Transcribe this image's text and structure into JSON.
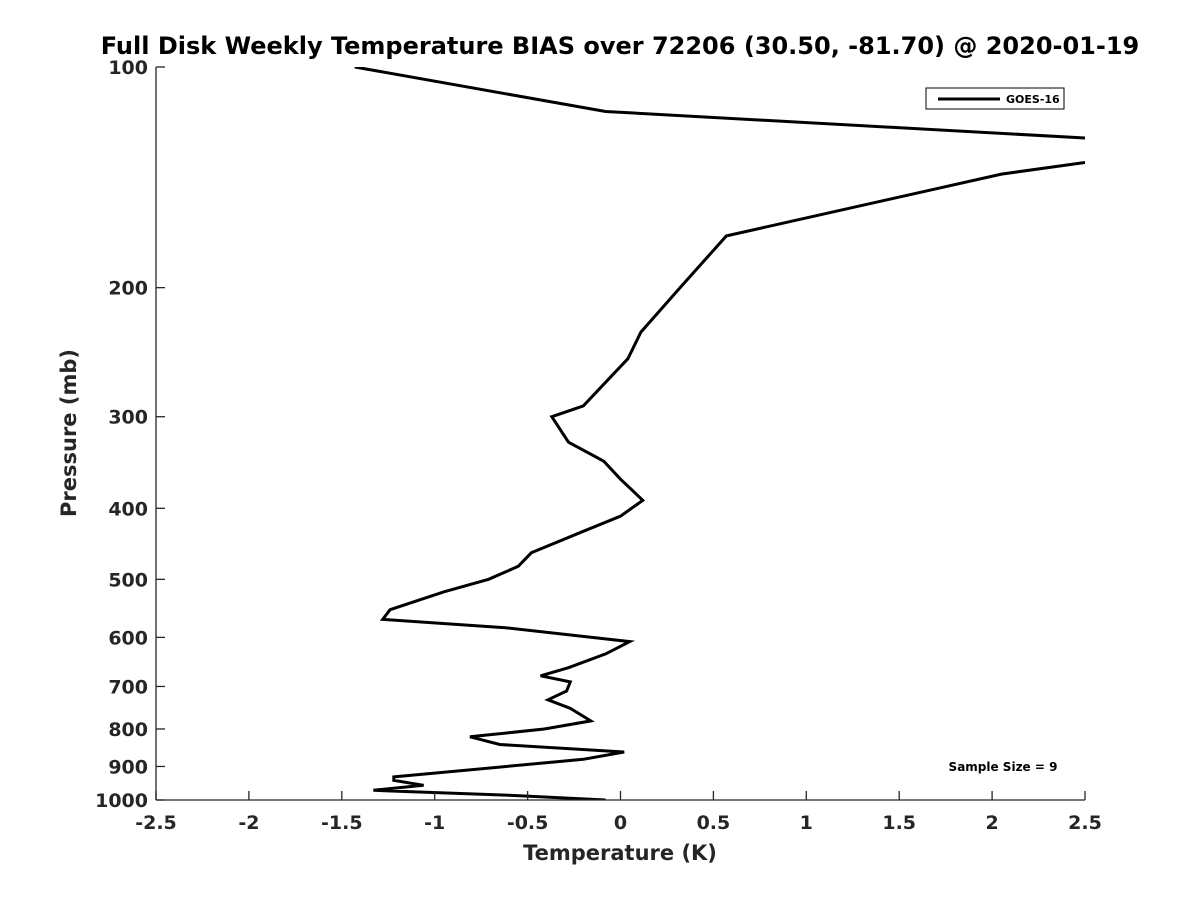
{
  "chart_data": {
    "type": "line",
    "title": "Full Disk Weekly Temperature BIAS over 72206 (30.50, -81.70) @ 2020-01-19",
    "xlabel": "Temperature (K)",
    "ylabel": "Pressure (mb)",
    "xlim": [
      -2.5,
      2.5
    ],
    "ylim": [
      100,
      1000
    ],
    "y_scale": "log",
    "y_reversed": true,
    "grid": false,
    "legend_position": "top-right",
    "x_ticks": [
      -2.5,
      -2,
      -1.5,
      -1,
      -0.5,
      0,
      0.5,
      1,
      1.5,
      2,
      2.5
    ],
    "x_tick_labels": [
      "-2.5",
      "-2",
      "-1.5",
      "-1",
      "-0.5",
      "0",
      "0.5",
      "1",
      "1.5",
      "2",
      "2.5"
    ],
    "y_ticks": [
      100,
      200,
      300,
      400,
      500,
      600,
      700,
      800,
      900,
      1000
    ],
    "y_tick_labels": [
      "100",
      "200",
      "300",
      "400",
      "500",
      "600",
      "700",
      "800",
      "900",
      "1000"
    ],
    "annotation": "Sample Size = 9",
    "series": [
      {
        "name": "GOES-16",
        "color": "#000000",
        "segments": [
          [
            {
              "x": -1.43,
              "y": 100
            },
            {
              "x": -0.08,
              "y": 115
            },
            {
              "x": 2.5,
              "y": 125
            }
          ],
          [
            {
              "x": 2.5,
              "y": 135
            },
            {
              "x": 2.05,
              "y": 140
            },
            {
              "x": 0.57,
              "y": 170
            },
            {
              "x": 0.32,
              "y": 200
            },
            {
              "x": 0.11,
              "y": 230
            },
            {
              "x": 0.04,
              "y": 250
            },
            {
              "x": -0.2,
              "y": 290
            },
            {
              "x": -0.37,
              "y": 300
            },
            {
              "x": -0.28,
              "y": 325
            },
            {
              "x": -0.09,
              "y": 345
            },
            {
              "x": 0.0,
              "y": 365
            },
            {
              "x": 0.12,
              "y": 390
            },
            {
              "x": 0.0,
              "y": 410
            },
            {
              "x": -0.2,
              "y": 430
            },
            {
              "x": -0.48,
              "y": 460
            },
            {
              "x": -0.55,
              "y": 480
            },
            {
              "x": -0.71,
              "y": 500
            },
            {
              "x": -0.95,
              "y": 520
            },
            {
              "x": -1.24,
              "y": 550
            },
            {
              "x": -1.28,
              "y": 567
            },
            {
              "x": -0.62,
              "y": 582
            },
            {
              "x": 0.05,
              "y": 608
            },
            {
              "x": -0.08,
              "y": 632
            },
            {
              "x": -0.28,
              "y": 660
            },
            {
              "x": -0.43,
              "y": 677
            },
            {
              "x": -0.27,
              "y": 690
            },
            {
              "x": -0.29,
              "y": 710
            },
            {
              "x": -0.39,
              "y": 730
            },
            {
              "x": -0.27,
              "y": 750
            },
            {
              "x": -0.16,
              "y": 780
            },
            {
              "x": -0.41,
              "y": 800
            },
            {
              "x": -0.81,
              "y": 820
            },
            {
              "x": -0.65,
              "y": 840
            },
            {
              "x": 0.02,
              "y": 860
            },
            {
              "x": -0.2,
              "y": 880
            },
            {
              "x": -1.22,
              "y": 930
            },
            {
              "x": -1.22,
              "y": 940
            },
            {
              "x": -1.06,
              "y": 955
            },
            {
              "x": -1.33,
              "y": 970
            },
            {
              "x": -0.6,
              "y": 985
            },
            {
              "x": -0.08,
              "y": 1000
            }
          ]
        ]
      }
    ]
  }
}
